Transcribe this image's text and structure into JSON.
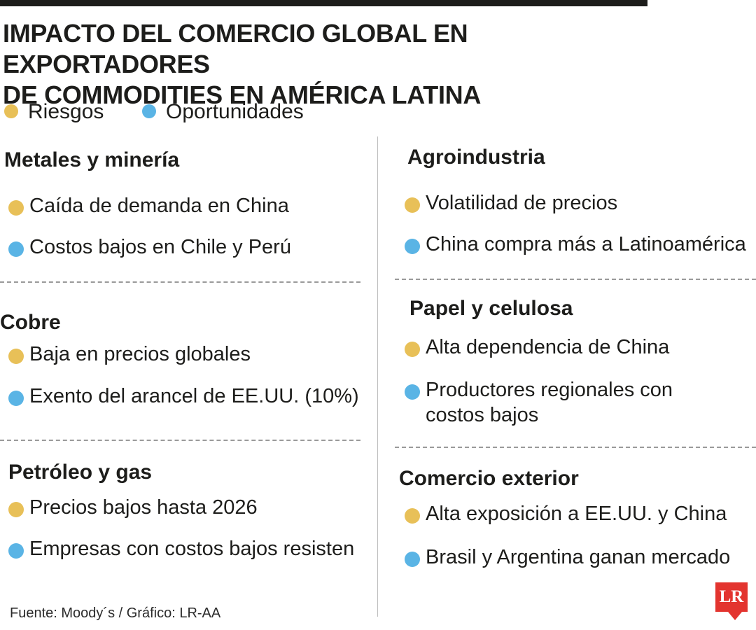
{
  "title": {
    "line1": "IMPACTO DEL COMERCIO GLOBAL EN EXPORTADORES",
    "line2": "DE COMMODITIES EN AMÉRICA LATINA"
  },
  "colors": {
    "riesgo": "#e8c058",
    "oportunidad": "#5ab4e5"
  },
  "legend": {
    "riesgos": "Riesgos",
    "oportunidades": "Oportunidades"
  },
  "left": [
    {
      "heading": "Metales y minería",
      "riesgo": "Caída de demanda en China",
      "oportunidad": "Costos bajos en Chile y Perú"
    },
    {
      "heading": "Cobre",
      "riesgo": "Baja en precios globales",
      "oportunidad": "Exento del arancel de EE.UU. (10%)"
    },
    {
      "heading": "Petróleo y gas",
      "riesgo": "Precios bajos hasta 2026",
      "oportunidad": "Empresas con costos bajos resisten"
    }
  ],
  "right": [
    {
      "heading": "Agroindustria",
      "riesgo": "Volatilidad de precios",
      "oportunidad": "China compra más a Latinoamérica"
    },
    {
      "heading": "Papel y celulosa",
      "riesgo": "Alta dependencia de China",
      "oportunidad": "Productores regionales con costos bajos"
    },
    {
      "heading": "Comercio exterior",
      "riesgo": "Alta exposición a EE.UU. y China",
      "oportunidad": "Brasil y Argentina ganan mercado"
    }
  ],
  "source": "Fuente: Moody´s / Gráfico: LR-AA",
  "logo": "LR"
}
